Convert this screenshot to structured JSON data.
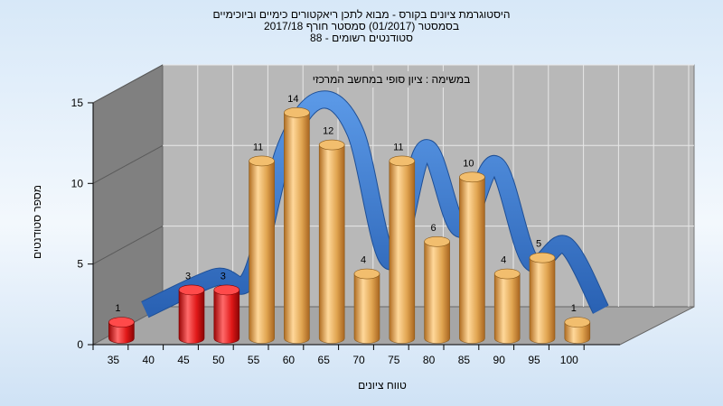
{
  "title_lines": [
    "היסטוגרמת ציונים בקורס - מבוא לתכן ריאקטורים כימיים וביוכימיים",
    "בסמסטר (01/2017) סמסטר חורף 2017/18",
    "סטודנטים רשומים - 88"
  ],
  "annotation": "במשימה : ציון סופי במחשב המרכזי",
  "colors": {
    "fail_bar": "#d81818",
    "pass_bar": "#e0a450",
    "ribbon": "#3a78c8",
    "back_wall": "#b8b8b8",
    "side_wall": "#808080",
    "floor": "#a6a6a6"
  },
  "chart_data": {
    "type": "bar",
    "title": "היסטוגרמת ציונים בקורס - מבוא לתכן ריאקטורים כימיים וביוכימיים",
    "xlabel": "טווח ציונים",
    "ylabel": "מספר סטודנטים",
    "x_ticks": [
      "35",
      "40",
      "45",
      "50",
      "55",
      "60",
      "65",
      "70",
      "75",
      "80",
      "85",
      "90",
      "95",
      "100"
    ],
    "y_ticks": [
      "0",
      "5",
      "10",
      "15"
    ],
    "ylim": [
      0,
      15
    ],
    "grid": true,
    "bars": [
      {
        "range_start": 35,
        "range_end": 40,
        "value": 1,
        "label": "1",
        "status": "fail"
      },
      {
        "range_start": 45,
        "range_end": 50,
        "value": 3,
        "label": "3",
        "status": "fail"
      },
      {
        "range_start": 50,
        "range_end": 55,
        "value": 3,
        "label": "3",
        "status": "fail"
      },
      {
        "range_start": 55,
        "range_end": 60,
        "value": 11,
        "label": "11",
        "status": "pass"
      },
      {
        "range_start": 60,
        "range_end": 65,
        "value": 14,
        "label": "14",
        "status": "pass"
      },
      {
        "range_start": 65,
        "range_end": 70,
        "value": 12,
        "label": "12",
        "status": "pass"
      },
      {
        "range_start": 70,
        "range_end": 75,
        "value": 4,
        "label": "4",
        "status": "pass"
      },
      {
        "range_start": 75,
        "range_end": 80,
        "value": 11,
        "label": "11",
        "status": "pass"
      },
      {
        "range_start": 80,
        "range_end": 85,
        "value": 6,
        "label": "6",
        "status": "pass"
      },
      {
        "range_start": 85,
        "range_end": 90,
        "value": 10,
        "label": "10",
        "status": "pass"
      },
      {
        "range_start": 90,
        "range_end": 95,
        "value": 4,
        "label": "4",
        "status": "pass"
      },
      {
        "range_start": 95,
        "range_end": 100,
        "value": 5,
        "label": "5",
        "status": "pass"
      },
      {
        "range_start": 100,
        "range_end": 105,
        "value": 1,
        "label": "1",
        "status": "pass"
      }
    ]
  }
}
